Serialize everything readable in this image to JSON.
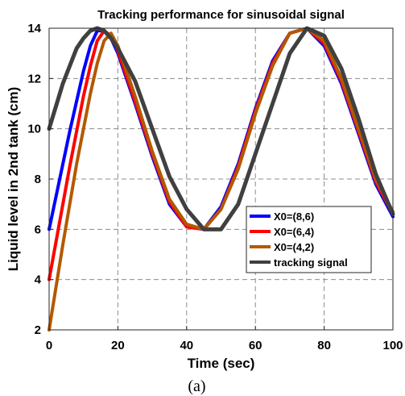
{
  "chart_data": {
    "type": "line",
    "title": "Tracking performance for sinusoidal signal",
    "xlabel": "Time (sec)",
    "ylabel": "Liquid level in 2nd tank (cm)",
    "caption": "(a)",
    "xlim": [
      0,
      100
    ],
    "ylim": [
      2,
      14
    ],
    "xticks": [
      "0",
      "20",
      "40",
      "60",
      "80",
      "100"
    ],
    "yticks": [
      "2",
      "4",
      "6",
      "8",
      "10",
      "12",
      "14"
    ],
    "grid": true,
    "legend_position": "lower-right",
    "series": [
      {
        "name": "X0=(8,6)",
        "color": "#0000ff",
        "x": [
          0,
          2,
          4,
          6,
          8,
          10,
          12,
          14,
          16,
          18,
          20,
          25,
          30,
          35,
          40,
          45,
          50,
          55,
          60,
          65,
          70,
          75,
          80,
          85,
          90,
          95,
          100
        ],
        "y": [
          6.0,
          7.3,
          8.6,
          9.9,
          11.1,
          12.3,
          13.3,
          13.9,
          13.9,
          13.6,
          13.0,
          11.0,
          8.9,
          7.0,
          6.1,
          6.0,
          6.9,
          8.6,
          10.8,
          12.7,
          13.8,
          14.0,
          13.3,
          11.8,
          9.8,
          7.8,
          6.5
        ]
      },
      {
        "name": "X0=(6,4)",
        "color": "#ff0000",
        "x": [
          0,
          2,
          4,
          6,
          8,
          10,
          12,
          14,
          16,
          18,
          20,
          25,
          30,
          35,
          40,
          45,
          50,
          55,
          60,
          65,
          70,
          75,
          80,
          85,
          90,
          95,
          100
        ],
        "y": [
          4.0,
          5.5,
          7.0,
          8.5,
          9.9,
          11.3,
          12.5,
          13.5,
          13.9,
          13.7,
          13.1,
          11.1,
          9.0,
          7.1,
          6.1,
          6.0,
          6.8,
          8.5,
          10.7,
          12.6,
          13.8,
          14.0,
          13.4,
          11.9,
          9.9,
          7.9,
          6.6
        ]
      },
      {
        "name": "X0=(4,2)",
        "color": "#b35900",
        "x": [
          0,
          2,
          4,
          6,
          8,
          10,
          12,
          14,
          16,
          18,
          20,
          25,
          30,
          35,
          40,
          45,
          50,
          55,
          60,
          65,
          70,
          75,
          80,
          85,
          90,
          95,
          100
        ],
        "y": [
          2.0,
          3.7,
          5.4,
          7.0,
          8.6,
          10.0,
          11.4,
          12.6,
          13.5,
          13.8,
          13.3,
          11.3,
          9.1,
          7.2,
          6.2,
          6.0,
          6.8,
          8.4,
          10.6,
          12.5,
          13.8,
          14.0,
          13.5,
          12.0,
          10.0,
          8.0,
          6.7
        ]
      },
      {
        "name": "tracking signal",
        "color": "#404040",
        "x": [
          0,
          2,
          4,
          6,
          8,
          10,
          12,
          14,
          16,
          18,
          20,
          25,
          30,
          35,
          40,
          45,
          50,
          55,
          60,
          65,
          70,
          75,
          80,
          85,
          90,
          95,
          100
        ],
        "y": [
          10.0,
          10.9,
          11.8,
          12.5,
          13.2,
          13.6,
          13.9,
          14.0,
          13.9,
          13.6,
          13.2,
          11.9,
          10.0,
          8.1,
          6.8,
          6.0,
          6.0,
          7.0,
          9.0,
          11.0,
          13.0,
          14.0,
          13.7,
          12.4,
          10.4,
          8.2,
          6.6
        ]
      }
    ]
  }
}
